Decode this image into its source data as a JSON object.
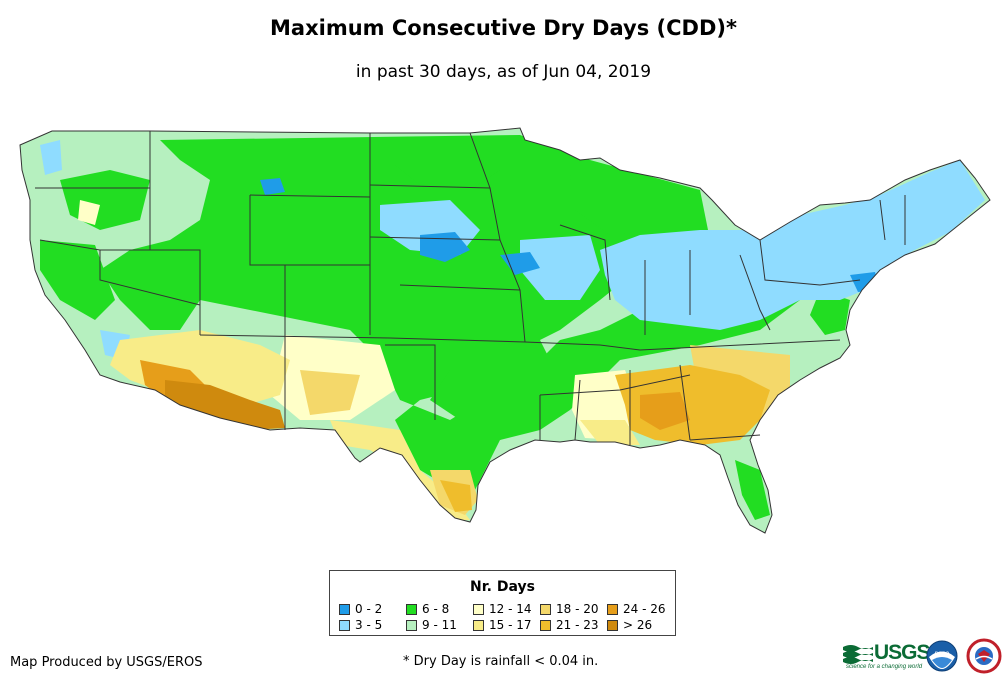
{
  "title": "Maximum Consecutive Dry Days (CDD)*",
  "subtitle": "in past 30 days, as of Jun 04, 2019",
  "legend": {
    "title": "Nr. Days",
    "items": [
      {
        "label": "0 - 2",
        "color": "#1f9ce8"
      },
      {
        "label": "3 - 5",
        "color": "#8fdcff"
      },
      {
        "label": "6 - 8",
        "color": "#22dd22"
      },
      {
        "label": "9 - 11",
        "color": "#b6f0bf"
      },
      {
        "label": "12 - 14",
        "color": "#ffffc8"
      },
      {
        "label": "15 - 17",
        "color": "#f8ec88"
      },
      {
        "label": "18 - 20",
        "color": "#f4d86a"
      },
      {
        "label": "21 - 23",
        "color": "#efbd2c"
      },
      {
        "label": "24 - 26",
        "color": "#e69e1a"
      },
      {
        "label": "> 26",
        "color": "#cf8a0e"
      }
    ]
  },
  "credit": "Map Produced by USGS/EROS",
  "note": "* Dry Day is rainfall < 0.04 in.",
  "logos": {
    "usgs": "USGS",
    "usgs_tagline": "science for a changing world",
    "noaa": "noaa"
  },
  "colors": {
    "water": "#ffffff",
    "border": "#333333"
  }
}
